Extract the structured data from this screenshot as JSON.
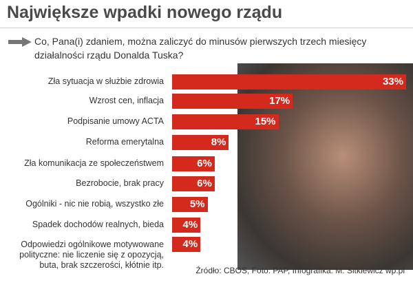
{
  "chart_data": {
    "type": "bar",
    "title": "Największe wpadki nowego rządu",
    "subtitle": "Co, Pana(i) zdaniem, można zaliczyć do minusów pierwszych trzech miesięcy działalności rządu Donalda Tuska?",
    "categories": [
      "Zła sytuacja w służbie zdrowia",
      "Wzrost cen, inflacja",
      "Podpisanie umowy ACTA",
      "Reforma emerytalna",
      "Zła komunikacja ze społeczeństwem",
      "Bezrobocie, brak pracy",
      "Ogólniki - nic nie robią, wszystko złe",
      "Spadek dochodów realnych, bieda",
      "Odpowiedzi ogólnikowe motywowane polityczne: nie liczenie się z opozycją, buta, brak szczerości, kłótnie itp."
    ],
    "values": [
      33,
      17,
      15,
      8,
      6,
      6,
      5,
      4,
      4
    ],
    "value_labels": [
      "33%",
      "17%",
      "15%",
      "8%",
      "6%",
      "6%",
      "5%",
      "4%",
      "4%"
    ],
    "color": "#d42a1e",
    "xlim": [
      0,
      33
    ],
    "source": "Źródło: CBOS, Foto: PAP, Infografika: M. Sitkiewicz wp.pl"
  }
}
